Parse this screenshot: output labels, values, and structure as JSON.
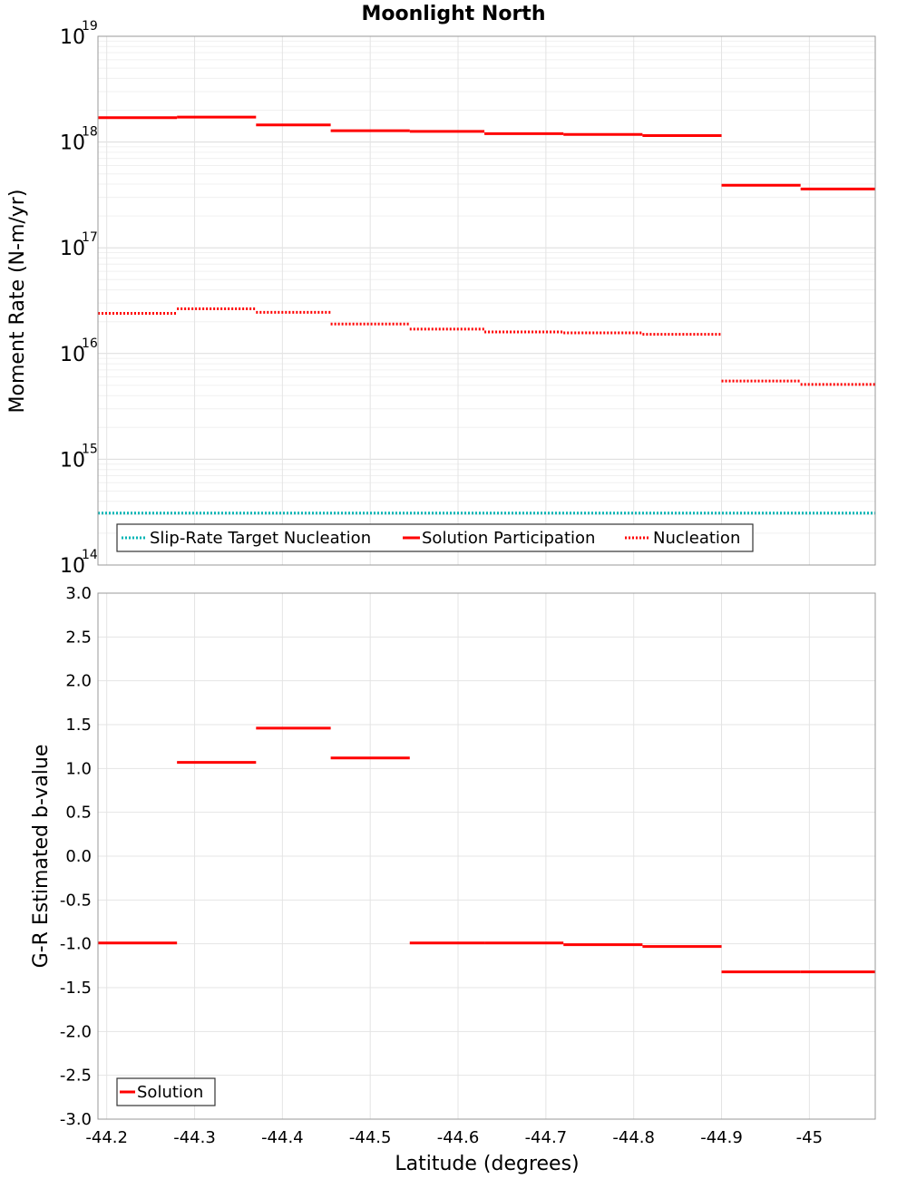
{
  "chart_data": [
    {
      "type": "line",
      "title": "Moonlight North",
      "xlabel": "",
      "ylabel": "Moment Rate (N-m/yr)",
      "yscale": "log",
      "ylim_exponent": [
        14,
        19
      ],
      "ytick_base": "10",
      "ytick_exponents": [
        "14",
        "15",
        "16",
        "17",
        "18",
        "19"
      ],
      "xlim": [
        -44.19,
        -45.075
      ],
      "grid": true,
      "legend_position": "bottom-left",
      "series": [
        {
          "name": "Slip-Rate Target Nucleation",
          "color": "#00b4b4",
          "style": "dotted",
          "segments": [
            [
              -44.19,
              -45.075,
              310000000000000.0
            ]
          ]
        },
        {
          "name": "Solution Participation",
          "color": "#ff0000",
          "style": "solid",
          "segments": [
            [
              -44.19,
              -44.28,
              1.7e+18
            ],
            [
              -44.28,
              -44.37,
              1.72e+18
            ],
            [
              -44.37,
              -44.455,
              1.45e+18
            ],
            [
              -44.455,
              -44.545,
              1.28e+18
            ],
            [
              -44.545,
              -44.63,
              1.26e+18
            ],
            [
              -44.63,
              -44.72,
              1.2e+18
            ],
            [
              -44.72,
              -44.81,
              1.18e+18
            ],
            [
              -44.81,
              -44.9,
              1.15e+18
            ],
            [
              -44.9,
              -44.99,
              3.9e+17
            ],
            [
              -44.99,
              -45.075,
              3.6e+17
            ]
          ]
        },
        {
          "name": "Nucleation",
          "color": "#ff0000",
          "style": "dotted",
          "segments": [
            [
              -44.19,
              -44.28,
              2.4e+16
            ],
            [
              -44.28,
              -44.37,
              2.65e+16
            ],
            [
              -44.37,
              -44.455,
              2.45e+16
            ],
            [
              -44.455,
              -44.545,
              1.9e+16
            ],
            [
              -44.545,
              -44.63,
              1.7e+16
            ],
            [
              -44.63,
              -44.72,
              1.6e+16
            ],
            [
              -44.72,
              -44.81,
              1.57e+16
            ],
            [
              -44.81,
              -44.9,
              1.52e+16
            ],
            [
              -44.9,
              -44.99,
              5500000000000000.0
            ],
            [
              -44.99,
              -45.075,
              5100000000000000.0
            ]
          ]
        }
      ]
    },
    {
      "type": "line",
      "title": "",
      "xlabel": "Latitude (degrees)",
      "ylabel": "G-R Estimated b-value",
      "yscale": "linear",
      "ylim": [
        -3.0,
        3.0
      ],
      "yticks": [
        "3.0",
        "2.5",
        "2.0",
        "1.5",
        "1.0",
        "0.5",
        "0.0",
        "-0.5",
        "-1.0",
        "-1.5",
        "-2.0",
        "-2.5",
        "-3.0"
      ],
      "xlim": [
        -44.19,
        -45.075
      ],
      "xticks": [
        "-44.2",
        "-44.3",
        "-44.4",
        "-44.5",
        "-44.6",
        "-44.7",
        "-44.8",
        "-44.9",
        "-45"
      ],
      "grid": true,
      "legend_position": "bottom-left",
      "series": [
        {
          "name": "Solution",
          "color": "#ff0000",
          "style": "solid",
          "segments": [
            [
              -44.19,
              -44.28,
              -0.99
            ],
            [
              -44.28,
              -44.37,
              1.07
            ],
            [
              -44.37,
              -44.455,
              1.46
            ],
            [
              -44.455,
              -44.545,
              1.12
            ],
            [
              -44.545,
              -44.63,
              -0.99
            ],
            [
              -44.63,
              -44.72,
              -0.99
            ],
            [
              -44.72,
              -44.81,
              -1.01
            ],
            [
              -44.81,
              -44.9,
              -1.03
            ],
            [
              -44.9,
              -44.99,
              -1.32
            ],
            [
              -44.99,
              -45.075,
              -1.32
            ]
          ]
        }
      ]
    }
  ]
}
